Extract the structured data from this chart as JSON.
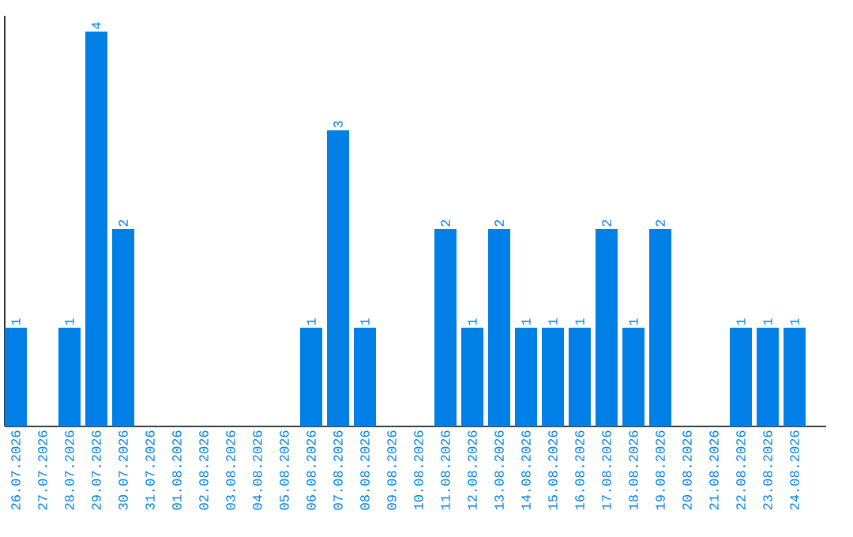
{
  "chart_data": {
    "type": "bar",
    "categories": [
      "26.07.2026",
      "27.07.2026",
      "28.07.2026",
      "29.07.2026",
      "30.07.2026",
      "31.07.2026",
      "01.08.2026",
      "02.08.2026",
      "03.08.2026",
      "04.08.2026",
      "05.08.2026",
      "06.08.2026",
      "07.08.2026",
      "08.08.2026",
      "09.08.2026",
      "10.08.2026",
      "11.08.2026",
      "12.08.2026",
      "13.08.2026",
      "14.08.2026",
      "15.08.2026",
      "16.08.2026",
      "17.08.2026",
      "18.08.2026",
      "19.08.2026",
      "20.08.2026",
      "21.08.2026",
      "22.08.2026",
      "23.08.2026",
      "24.08.2026"
    ],
    "values": [
      1,
      0,
      1,
      4,
      2,
      0,
      0,
      0,
      0,
      0,
      0,
      1,
      3,
      1,
      0,
      0,
      2,
      1,
      2,
      1,
      1,
      1,
      2,
      1,
      2,
      0,
      0,
      1,
      1,
      1
    ],
    "value_labels": [
      "1",
      null,
      "1",
      "4",
      "2",
      null,
      null,
      null,
      null,
      null,
      null,
      "1",
      "3",
      "1",
      null,
      null,
      "2",
      "1",
      "2",
      "1",
      "1",
      "1",
      "2",
      "1",
      "2",
      null,
      null,
      "1",
      "1",
      "1"
    ],
    "color": "#0080e6",
    "ylim": [
      0,
      4.16
    ],
    "tick_labels": "x"
  }
}
